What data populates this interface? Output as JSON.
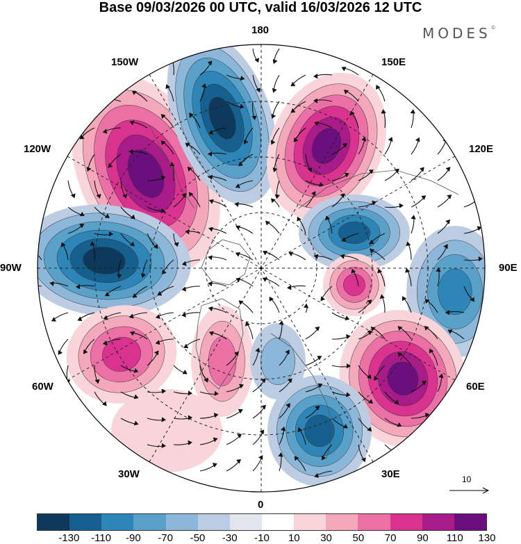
{
  "title": "Base 09/03/2026 00 UTC, valid 16/03/2026 12 UTC",
  "brand": "MODES",
  "brand_mark": "©",
  "longitude_labels": {
    "n180": "180",
    "w150": "150W",
    "e150": "150E",
    "w120": "120W",
    "e120": "120E",
    "w90": "90W",
    "e90": "90E",
    "w60": "60W",
    "e60": "60E",
    "w30": "30W",
    "e30": "30E",
    "n0": "0"
  },
  "vector_scale_label": "10",
  "colorbar": {
    "colors": [
      "#0d3a5c",
      "#15608f",
      "#2e86b8",
      "#5aa1c9",
      "#8cb7d8",
      "#bccde3",
      "#e3e6f1",
      "#ffffff",
      "#f9d4d9",
      "#f4a9bb",
      "#ea70a6",
      "#d9338f",
      "#a91b88",
      "#6a0f7d"
    ],
    "tick_labels": [
      "-130",
      "-110",
      "-90",
      "-70",
      "-50",
      "-30",
      "-10",
      "10",
      "30",
      "50",
      "70",
      "90",
      "110",
      "130"
    ]
  },
  "map": {
    "layer_colors": {
      "neg_1": "#bccde3",
      "neg_2": "#8cb7d8",
      "neg_3": "#5aa1c9",
      "neg_4": "#2e86b8",
      "neg_5": "#15608f",
      "neg_6": "#0d3a5c",
      "pos_1": "#f9d4d9",
      "pos_2": "#f4a9bb",
      "pos_3": "#ea70a6",
      "pos_4": "#d9338f",
      "pos_5": "#a91b88",
      "pos_6": "#6a0f7d"
    }
  }
}
